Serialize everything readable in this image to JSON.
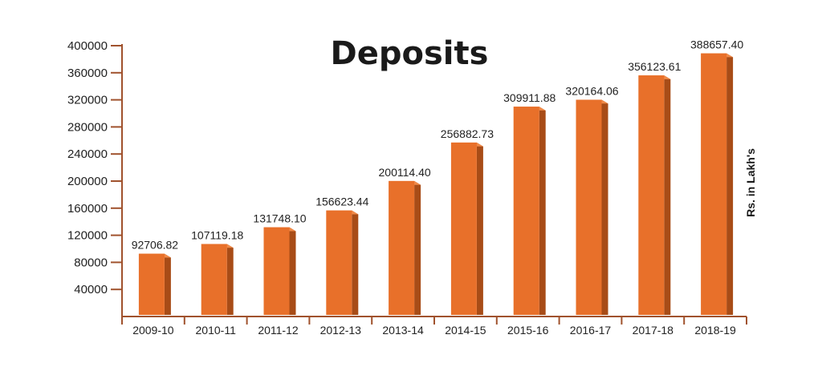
{
  "chart_data": {
    "type": "bar",
    "title": "Deposits",
    "ylabel": "Rs. in Lakh's",
    "xlabel": "",
    "ylim": [
      0,
      400000
    ],
    "yticks": [
      40000,
      80000,
      120000,
      160000,
      200000,
      240000,
      280000,
      320000,
      360000,
      400000
    ],
    "categories": [
      "2009-10",
      "2010-11",
      "2011-12",
      "2012-13",
      "2013-14",
      "2014-15",
      "2015-16",
      "2016-17",
      "2017-18",
      "2018-19"
    ],
    "values": [
      92706.82,
      107119.18,
      131748.1,
      156623.44,
      200114.4,
      256882.73,
      309911.88,
      320164.06,
      356123.61,
      388657.4
    ],
    "value_labels": [
      "92706.82",
      "107119.18",
      "131748.10",
      "156623.44",
      "200114.40",
      "256882.73",
      "309911.88",
      "320164.06",
      "356123.61",
      "388657.40"
    ],
    "grid": false,
    "legend": "none",
    "colors": {
      "bar_front": "#e8702a",
      "bar_side": "#a84c17",
      "bar_top": "#f08a48",
      "axis": "#a0522d"
    }
  }
}
